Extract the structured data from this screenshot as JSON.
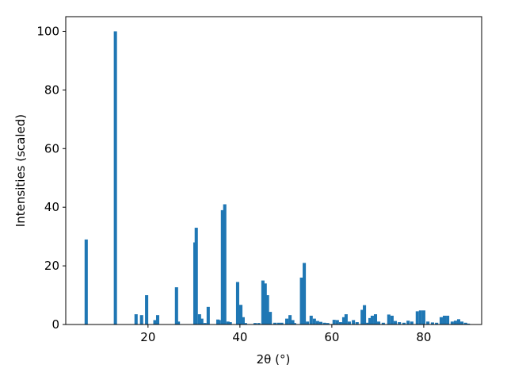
{
  "chart_data": {
    "type": "bar",
    "x_label": "2θ (°)",
    "y_label": "Intensities (scaled)",
    "x": [
      6.55,
      12.9,
      17.4,
      18.6,
      19.7,
      21.5,
      22.1,
      26.2,
      26.6,
      30.2,
      30.5,
      31.2,
      31.7,
      32.4,
      33.1,
      35.2,
      35.5,
      36.2,
      36.7,
      37.4,
      37.9,
      39.5,
      40.2,
      40.7,
      41.2,
      43.3,
      44.1,
      45.0,
      45.5,
      46.0,
      46.6,
      47.6,
      48.4,
      49.1,
      50.2,
      50.9,
      51.5,
      51.9,
      53.4,
      54.0,
      54.7,
      55.5,
      56.2,
      56.9,
      57.6,
      58.4,
      59.1,
      60.5,
      61.2,
      61.9,
      62.6,
      63.1,
      63.8,
      64.7,
      65.5,
      66.6,
      67.1,
      67.8,
      68.3,
      68.8,
      69.5,
      70.2,
      71.2,
      72.4,
      73.1,
      73.8,
      74.7,
      75.7,
      76.6,
      77.4,
      78.6,
      79.3,
      80.0,
      80.9,
      81.9,
      82.8,
      83.8,
      84.5,
      85.2,
      86.2,
      86.9,
      87.6,
      88.3,
      89.1,
      89.7
    ],
    "values": [
      29,
      100,
      3.5,
      3.2,
      10,
      1.5,
      3.2,
      12.7,
      1,
      28,
      33,
      3.5,
      2,
      0.5,
      6,
      1.7,
      1.5,
      39,
      41,
      1,
      0.8,
      14.5,
      6.7,
      2.5,
      0.5,
      0.5,
      0.5,
      15,
      14,
      10,
      4.3,
      0.6,
      0.6,
      0.6,
      2,
      3.2,
      1.5,
      0.5,
      16,
      21,
      1,
      3,
      2,
      1.2,
      0.9,
      0.6,
      0.5,
      1.6,
      1.5,
      0.8,
      2.5,
      3.5,
      1,
      1.5,
      0.8,
      5,
      6.6,
      0.6,
      2.2,
      3,
      3.5,
      1,
      0.6,
      3.4,
      3,
      1.2,
      0.8,
      0.6,
      1.3,
      1,
      4.5,
      4.8,
      4.8,
      1,
      0.7,
      0.6,
      2.5,
      3,
      3,
      1,
      1.3,
      1.8,
      1,
      0.6,
      0.3
    ],
    "color": "#1f77b4",
    "xlim": [
      2.1,
      92.6
    ],
    "xticks": [
      20,
      40,
      60,
      80
    ],
    "ylim": [
      0,
      105
    ],
    "yticks": [
      0,
      20,
      40,
      60,
      80,
      100
    ]
  }
}
